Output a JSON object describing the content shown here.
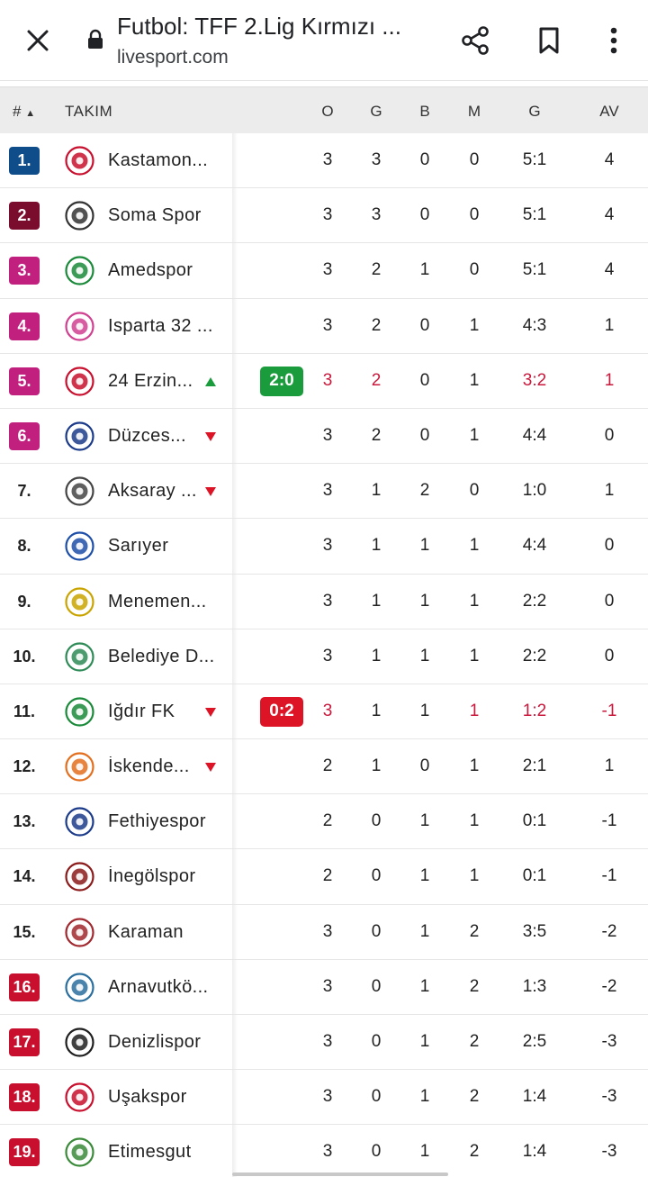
{
  "browser": {
    "title": "Futbol: TFF 2.Lig Kırmızı ...",
    "url": "livesport.com"
  },
  "colors": {
    "promo": "#0f4c8a",
    "playoff_top": "#7a0c2e",
    "playoff": "#c2207f",
    "relegation": "#c8102e",
    "live_win": "#1a9b3c",
    "live_loss": "#dd1326",
    "up": "#1a9b3c",
    "down": "#dd1326",
    "highlight": "#c8193c"
  },
  "header": {
    "rank": "#",
    "team": "TAKIM",
    "cols": [
      "O",
      "G",
      "B",
      "M",
      "G",
      "AV"
    ]
  },
  "rows": [
    {
      "rank": "1.",
      "zone": "promo",
      "team": "Kastamon...",
      "trend": "",
      "live": "",
      "o": "3",
      "g": "3",
      "b": "0",
      "m": "0",
      "goals": "5:1",
      "av": "4",
      "hl": []
    },
    {
      "rank": "2.",
      "zone": "playoff_top",
      "team": "Soma Spor",
      "trend": "",
      "live": "",
      "o": "3",
      "g": "3",
      "b": "0",
      "m": "0",
      "goals": "5:1",
      "av": "4",
      "hl": []
    },
    {
      "rank": "3.",
      "zone": "playoff",
      "team": "Amedspor",
      "trend": "",
      "live": "",
      "o": "3",
      "g": "2",
      "b": "1",
      "m": "0",
      "goals": "5:1",
      "av": "4",
      "hl": []
    },
    {
      "rank": "4.",
      "zone": "playoff",
      "team": "Isparta 32 ...",
      "trend": "",
      "live": "",
      "o": "3",
      "g": "2",
      "b": "0",
      "m": "1",
      "goals": "4:3",
      "av": "1",
      "hl": []
    },
    {
      "rank": "5.",
      "zone": "playoff",
      "team": "24 Erzin...",
      "trend": "up",
      "live": "2:0",
      "live_type": "win",
      "o": "3",
      "g": "2",
      "b": "0",
      "m": "1",
      "goals": "3:2",
      "av": "1",
      "hl": [
        "o",
        "g",
        "goals",
        "av"
      ]
    },
    {
      "rank": "6.",
      "zone": "playoff",
      "team": "Düzces...",
      "trend": "down",
      "live": "",
      "o": "3",
      "g": "2",
      "b": "0",
      "m": "1",
      "goals": "4:4",
      "av": "0",
      "hl": []
    },
    {
      "rank": "7.",
      "zone": "",
      "team": "Aksaray ...",
      "trend": "down",
      "live": "",
      "o": "3",
      "g": "1",
      "b": "2",
      "m": "0",
      "goals": "1:0",
      "av": "1",
      "hl": []
    },
    {
      "rank": "8.",
      "zone": "",
      "team": "Sarıyer",
      "trend": "",
      "live": "",
      "o": "3",
      "g": "1",
      "b": "1",
      "m": "1",
      "goals": "4:4",
      "av": "0",
      "hl": []
    },
    {
      "rank": "9.",
      "zone": "",
      "team": "Menemen...",
      "trend": "",
      "live": "",
      "o": "3",
      "g": "1",
      "b": "1",
      "m": "1",
      "goals": "2:2",
      "av": "0",
      "hl": []
    },
    {
      "rank": "10.",
      "zone": "",
      "team": "Belediye D...",
      "trend": "",
      "live": "",
      "o": "3",
      "g": "1",
      "b": "1",
      "m": "1",
      "goals": "2:2",
      "av": "0",
      "hl": []
    },
    {
      "rank": "11.",
      "zone": "",
      "team": "Iğdır FK",
      "trend": "down",
      "live": "0:2",
      "live_type": "loss",
      "o": "3",
      "g": "1",
      "b": "1",
      "m": "1",
      "goals": "1:2",
      "av": "-1",
      "hl": [
        "o",
        "m",
        "goals",
        "av"
      ]
    },
    {
      "rank": "12.",
      "zone": "",
      "team": "İskende...",
      "trend": "down",
      "live": "",
      "o": "2",
      "g": "1",
      "b": "0",
      "m": "1",
      "goals": "2:1",
      "av": "1",
      "hl": []
    },
    {
      "rank": "13.",
      "zone": "",
      "team": "Fethiyespor",
      "trend": "",
      "live": "",
      "o": "2",
      "g": "0",
      "b": "1",
      "m": "1",
      "goals": "0:1",
      "av": "-1",
      "hl": []
    },
    {
      "rank": "14.",
      "zone": "",
      "team": "İnegölspor",
      "trend": "",
      "live": "",
      "o": "2",
      "g": "0",
      "b": "1",
      "m": "1",
      "goals": "0:1",
      "av": "-1",
      "hl": []
    },
    {
      "rank": "15.",
      "zone": "",
      "team": "Karaman",
      "trend": "",
      "live": "",
      "o": "3",
      "g": "0",
      "b": "1",
      "m": "2",
      "goals": "3:5",
      "av": "-2",
      "hl": []
    },
    {
      "rank": "16.",
      "zone": "relegation",
      "team": "Arnavutkö...",
      "trend": "",
      "live": "",
      "o": "3",
      "g": "0",
      "b": "1",
      "m": "2",
      "goals": "1:3",
      "av": "-2",
      "hl": []
    },
    {
      "rank": "17.",
      "zone": "relegation",
      "team": "Denizlispor",
      "trend": "",
      "live": "",
      "o": "3",
      "g": "0",
      "b": "1",
      "m": "2",
      "goals": "2:5",
      "av": "-3",
      "hl": []
    },
    {
      "rank": "18.",
      "zone": "relegation",
      "team": "Uşakspor",
      "trend": "",
      "live": "",
      "o": "3",
      "g": "0",
      "b": "1",
      "m": "2",
      "goals": "1:4",
      "av": "-3",
      "hl": []
    },
    {
      "rank": "19.",
      "zone": "relegation",
      "team": "Etimesgut",
      "trend": "",
      "live": "",
      "o": "3",
      "g": "0",
      "b": "1",
      "m": "2",
      "goals": "1:4",
      "av": "-3",
      "hl": []
    }
  ]
}
